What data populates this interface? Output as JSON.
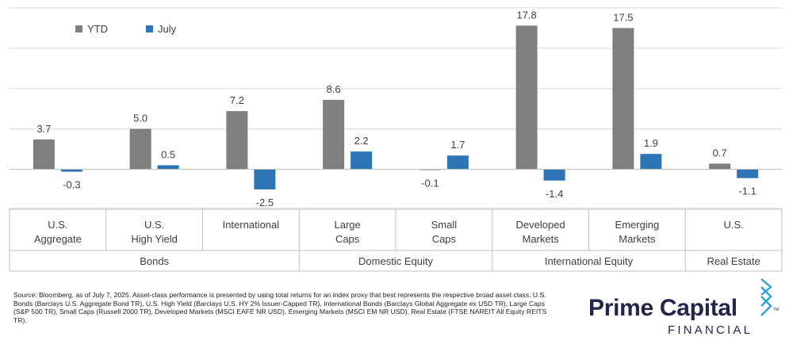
{
  "chart_data": {
    "type": "bar",
    "categories": [
      {
        "line1": "U.S.",
        "line2": "Aggregate"
      },
      {
        "line1": "U.S.",
        "line2": "High Yield"
      },
      {
        "line1": "International",
        "line2": ""
      },
      {
        "line1": "Large",
        "line2": "Caps"
      },
      {
        "line1": "Small",
        "line2": "Caps"
      },
      {
        "line1": "Developed",
        "line2": "Markets"
      },
      {
        "line1": "Emerging",
        "line2": "Markets"
      },
      {
        "line1": "U.S.",
        "line2": ""
      }
    ],
    "groups": [
      {
        "label": "Bonds",
        "span": 3
      },
      {
        "label": "Domestic Equity",
        "span": 2
      },
      {
        "label": "International Equity",
        "span": 2
      },
      {
        "label": "Real Estate",
        "span": 1
      }
    ],
    "series": [
      {
        "name": "YTD",
        "color": "#7f7f7f",
        "values": [
          3.7,
          5.0,
          7.2,
          8.6,
          -0.1,
          17.8,
          17.5,
          0.7
        ],
        "labels": [
          "3.7",
          "5.0",
          "7.2",
          "8.6",
          "-0.1",
          "17.8",
          "17.5",
          "0.7"
        ]
      },
      {
        "name": "July",
        "color": "#2e75b6",
        "values": [
          -0.3,
          0.5,
          -2.5,
          2.2,
          1.7,
          -1.4,
          1.9,
          -1.1
        ],
        "labels": [
          "-0.3",
          "0.5",
          "-2.5",
          "2.2",
          "1.7",
          "-1.4",
          "1.9",
          "-1.1"
        ]
      }
    ],
    "ylim": [
      -5,
      20
    ],
    "gridlines": [
      -5,
      0,
      5,
      10,
      15,
      20
    ],
    "legend_position": "top-left",
    "grid": true
  },
  "source_note": "Source: Bloomberg, as of July 7, 2025. Asset-class performance is presented by using total returns for an index proxy that best represents the respective broad asset class. U.S. Bonds (Barclays U.S. Aggregate Bond TR), U.S. High Yield (Barclays U.S. HY 2% Issuer-Capped TR), International Bonds (Barclays Global Aggregate ex USD TR), Large Caps (S&P 500 TR), Small Caps (Russell 2000 TR), Developed Markets (MSCI EAFE NR USD), Emerging Markets (MSCI EM NR USD), Real Estate (FTSE NAREIT All Equity REITS TR).",
  "logo": {
    "name": "Prime Capital",
    "sub": "FINANCIAL",
    "tm": "TM",
    "color": "#22264b",
    "accent": "#2e9fd8"
  }
}
